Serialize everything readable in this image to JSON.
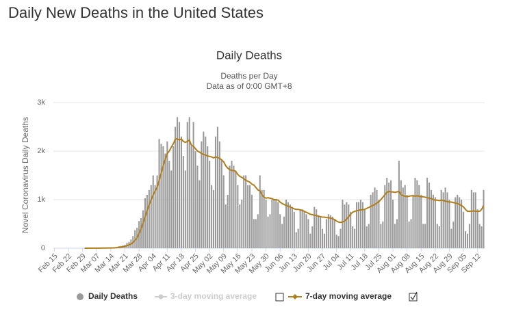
{
  "page_title": "Daily New Deaths in the United States",
  "chart_data": {
    "type": "bar",
    "title": "Daily Deaths",
    "subtitle": [
      "Deaths per Day",
      "Data as of 0:00 GMT+8"
    ],
    "ylabel": "Novel Coronavirus Daily Deaths",
    "ylim": [
      0,
      3000
    ],
    "yticks": [
      0,
      {
        "value": 1000,
        "label": "1k"
      },
      {
        "value": 2000,
        "label": "2k"
      },
      {
        "value": 3000,
        "label": "3k"
      }
    ],
    "grid": true,
    "categories": [
      "Feb 15",
      null,
      null,
      null,
      null,
      null,
      null,
      "Feb 22",
      null,
      null,
      null,
      null,
      null,
      null,
      "Feb 29",
      null,
      null,
      null,
      null,
      null,
      null,
      "Mar 07",
      null,
      null,
      null,
      null,
      null,
      null,
      "Mar 14",
      null,
      null,
      null,
      null,
      null,
      null,
      "Mar 21",
      null,
      null,
      null,
      null,
      null,
      null,
      "Mar 28",
      null,
      null,
      null,
      null,
      null,
      null,
      "Apr 04",
      null,
      null,
      null,
      null,
      null,
      null,
      "Apr 11",
      null,
      null,
      null,
      null,
      null,
      null,
      "Apr 18",
      null,
      null,
      null,
      null,
      null,
      null,
      "Apr 25",
      null,
      null,
      null,
      null,
      null,
      null,
      "May 02",
      null,
      null,
      null,
      null,
      null,
      null,
      "May 09",
      null,
      null,
      null,
      null,
      null,
      null,
      "May 16",
      null,
      null,
      null,
      null,
      null,
      null,
      "May 23",
      null,
      null,
      null,
      null,
      null,
      null,
      "May 30",
      null,
      null,
      null,
      null,
      null,
      null,
      "Jun 06",
      null,
      null,
      null,
      null,
      null,
      null,
      "Jun 13",
      null,
      null,
      null,
      null,
      null,
      null,
      "Jun 20",
      null,
      null,
      null,
      null,
      null,
      null,
      "Jun 27",
      null,
      null,
      null,
      null,
      null,
      null,
      "Jul 04",
      null,
      null,
      null,
      null,
      null,
      null,
      "Jul 11",
      null,
      null,
      null,
      null,
      null,
      null,
      "Jul 18",
      null,
      null,
      null,
      null,
      null,
      null,
      "Jul 25",
      null,
      null,
      null,
      null,
      null,
      null,
      "Aug 01",
      null,
      null,
      null,
      null,
      null,
      null,
      "Aug 08",
      null,
      null,
      null,
      null,
      null,
      null,
      "Aug 15",
      null,
      null,
      null,
      null,
      null,
      null,
      "Aug 22",
      null,
      null,
      null,
      null,
      null,
      null,
      "Aug 29",
      null,
      null,
      null,
      null,
      null,
      null,
      "Sep 05",
      null,
      null,
      null,
      null,
      null,
      null,
      "Sep 12",
      null,
      null,
      null
    ],
    "series": [
      {
        "name": "Daily Deaths",
        "color": "#999999",
        "values": [
          0,
          0,
          0,
          0,
          0,
          0,
          0,
          0,
          0,
          0,
          0,
          0,
          0,
          0,
          1,
          0,
          1,
          4,
          1,
          1,
          2,
          3,
          4,
          3,
          4,
          8,
          4,
          10,
          10,
          12,
          18,
          23,
          40,
          47,
          56,
          68,
          110,
          130,
          180,
          250,
          370,
          420,
          560,
          620,
          780,
          1030,
          1100,
          1200,
          1300,
          1500,
          1300,
          1500,
          2250,
          2150,
          2100,
          1950,
          2200,
          1800,
          1600,
          2100,
          2500,
          2700,
          2600,
          2300,
          1900,
          1600,
          2600,
          2700,
          2100,
          2600,
          2000,
          1700,
          1400,
          2200,
          2400,
          2300,
          2100,
          1800,
          1300,
          1200,
          2300,
          2500,
          2200,
          1800,
          1500,
          900,
          1100,
          1700,
          1800,
          1700,
          1600,
          1300,
          900,
          1000,
          1500,
          1500,
          1300,
          1300,
          1100,
          600,
          600,
          700,
          1500,
          1200,
          1200,
          1000,
          650,
          700,
          1000,
          1000,
          1000,
          950,
          700,
          500,
          650,
          1000,
          950,
          900,
          850,
          750,
          330,
          400,
          800,
          800,
          750,
          700,
          600,
          300,
          450,
          850,
          800,
          680,
          650,
          400,
          300,
          600,
          700,
          680,
          650,
          600,
          280,
          250,
          400,
          1000,
          900,
          950,
          900,
          750,
          450,
          400,
          950,
          950,
          1000,
          950,
          800,
          450,
          500,
          1100,
          1150,
          1250,
          1200,
          1000,
          500,
          550,
          1300,
          1450,
          1350,
          1400,
          1000,
          500,
          600,
          1800,
          1400,
          1250,
          1300,
          1100,
          550,
          600,
          1100,
          1450,
          1400,
          1300,
          1100,
          500,
          500,
          1450,
          1350,
          1200,
          1100,
          1050,
          500,
          450,
          1200,
          1150,
          1250,
          1150,
          1000,
          400,
          550,
          1050,
          1100,
          1050,
          1000,
          750,
          350,
          300,
          500,
          1200,
          1150,
          1150,
          800,
          500,
          450,
          1200
        ]
      },
      {
        "name": "7-day moving average",
        "color": "#b07d1a",
        "values": [
          null,
          null,
          null,
          null,
          null,
          null,
          null,
          null,
          null,
          null,
          null,
          null,
          null,
          null,
          null,
          0,
          0,
          1,
          1,
          1,
          1,
          2,
          2,
          2,
          3,
          4,
          4,
          5,
          6,
          7,
          9,
          12,
          17,
          23,
          30,
          39,
          52,
          67,
          87,
          115,
          160,
          210,
          300,
          400,
          520,
          650,
          780,
          900,
          1000,
          1100,
          1180,
          1260,
          1400,
          1550,
          1700,
          1830,
          1950,
          2000,
          2080,
          2150,
          2250,
          2250,
          2230,
          2250,
          2200,
          2180,
          2200,
          2230,
          2120,
          2100,
          2050,
          2000,
          1980,
          1950,
          1930,
          1920,
          1900,
          1890,
          1880,
          1860,
          1880,
          1870,
          1850,
          1820,
          1780,
          1700,
          1650,
          1620,
          1600,
          1600,
          1580,
          1520,
          1480,
          1460,
          1430,
          1400,
          1380,
          1360,
          1320,
          1300,
          1250,
          1200,
          1180,
          1100,
          1050,
          1030,
          1040,
          1030,
          1020,
          1000,
          1000,
          990,
          950,
          920,
          900,
          880,
          860,
          850,
          830,
          810,
          800,
          800,
          790,
          780,
          760,
          740,
          720,
          700,
          690,
          680,
          670,
          660,
          650,
          640,
          640,
          630,
          630,
          620,
          610,
          590,
          560,
          540,
          530,
          540,
          560,
          600,
          650,
          700,
          740,
          760,
          770,
          780,
          790,
          790,
          800,
          820,
          840,
          860,
          880,
          900,
          930,
          960,
          1000,
          1050,
          1100,
          1150,
          1170,
          1160,
          1160,
          1150,
          1160,
          1170,
          1100,
          1080,
          1070,
          1060,
          1070,
          1080,
          1080,
          1070,
          1080,
          1070,
          1060,
          1060,
          1050,
          1040,
          1030,
          1020,
          1000,
          990,
          990,
          980,
          990,
          980,
          970,
          960,
          950,
          950,
          940,
          930,
          920,
          900,
          880,
          850,
          800,
          760,
          760,
          760,
          770,
          760,
          760,
          760,
          800,
          880
        ]
      }
    ],
    "hidden_series": [
      {
        "name": "3-day moving average",
        "color": "#cccccc"
      }
    ]
  }
}
